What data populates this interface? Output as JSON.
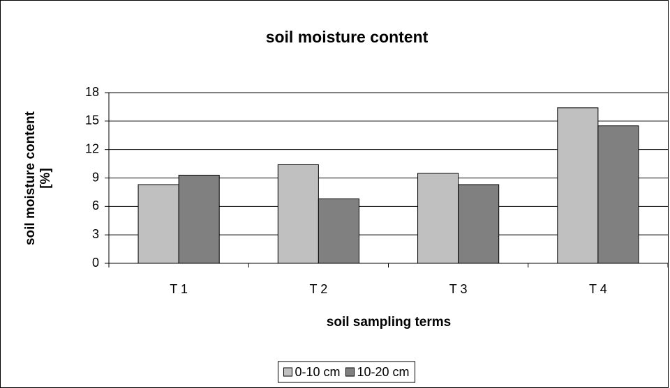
{
  "chart_data": {
    "type": "bar",
    "title": "soil moisture content",
    "x_label": "soil sampling terms",
    "y_label": [
      "soil moisture content",
      "[%]"
    ],
    "categories": [
      "T 1",
      "T 2",
      "T 3",
      "T 4"
    ],
    "series": [
      {
        "name": "0-10 cm",
        "color": "#c0c0c0",
        "values": [
          8.3,
          10.4,
          9.5,
          16.4
        ]
      },
      {
        "name": "10-20 cm",
        "color": "#808080",
        "values": [
          9.3,
          6.8,
          8.3,
          14.5
        ]
      }
    ],
    "ylim": [
      0,
      18
    ],
    "yticks": [
      0,
      3,
      6,
      9,
      12,
      15,
      18
    ],
    "grid": true,
    "legend": "bottom"
  }
}
